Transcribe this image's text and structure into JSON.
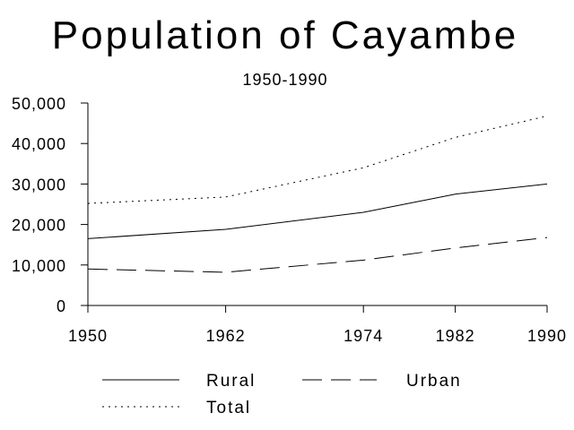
{
  "chart_data": {
    "type": "line",
    "title": "Population of Cayambe",
    "subtitle": "1950-1990",
    "x": [
      1950,
      1962,
      1974,
      1982,
      1990
    ],
    "x_ticks": [
      "1950",
      "1962",
      "1974",
      "1982",
      "1990"
    ],
    "y_ticks": [
      "0",
      "10,000",
      "20,000",
      "30,000",
      "40,000",
      "50,000"
    ],
    "ylim": [
      0,
      50000
    ],
    "grid": false,
    "legend_position": "bottom",
    "series": [
      {
        "name": "Rural",
        "values": [
          16500,
          18800,
          23000,
          27500,
          30000
        ],
        "dash": ""
      },
      {
        "name": "Urban",
        "values": [
          9000,
          8200,
          11200,
          14200,
          16800
        ],
        "dash": "22,10"
      },
      {
        "name": "Total",
        "values": [
          25200,
          26800,
          34000,
          41500,
          46800
        ],
        "dash": "2,5"
      }
    ]
  }
}
